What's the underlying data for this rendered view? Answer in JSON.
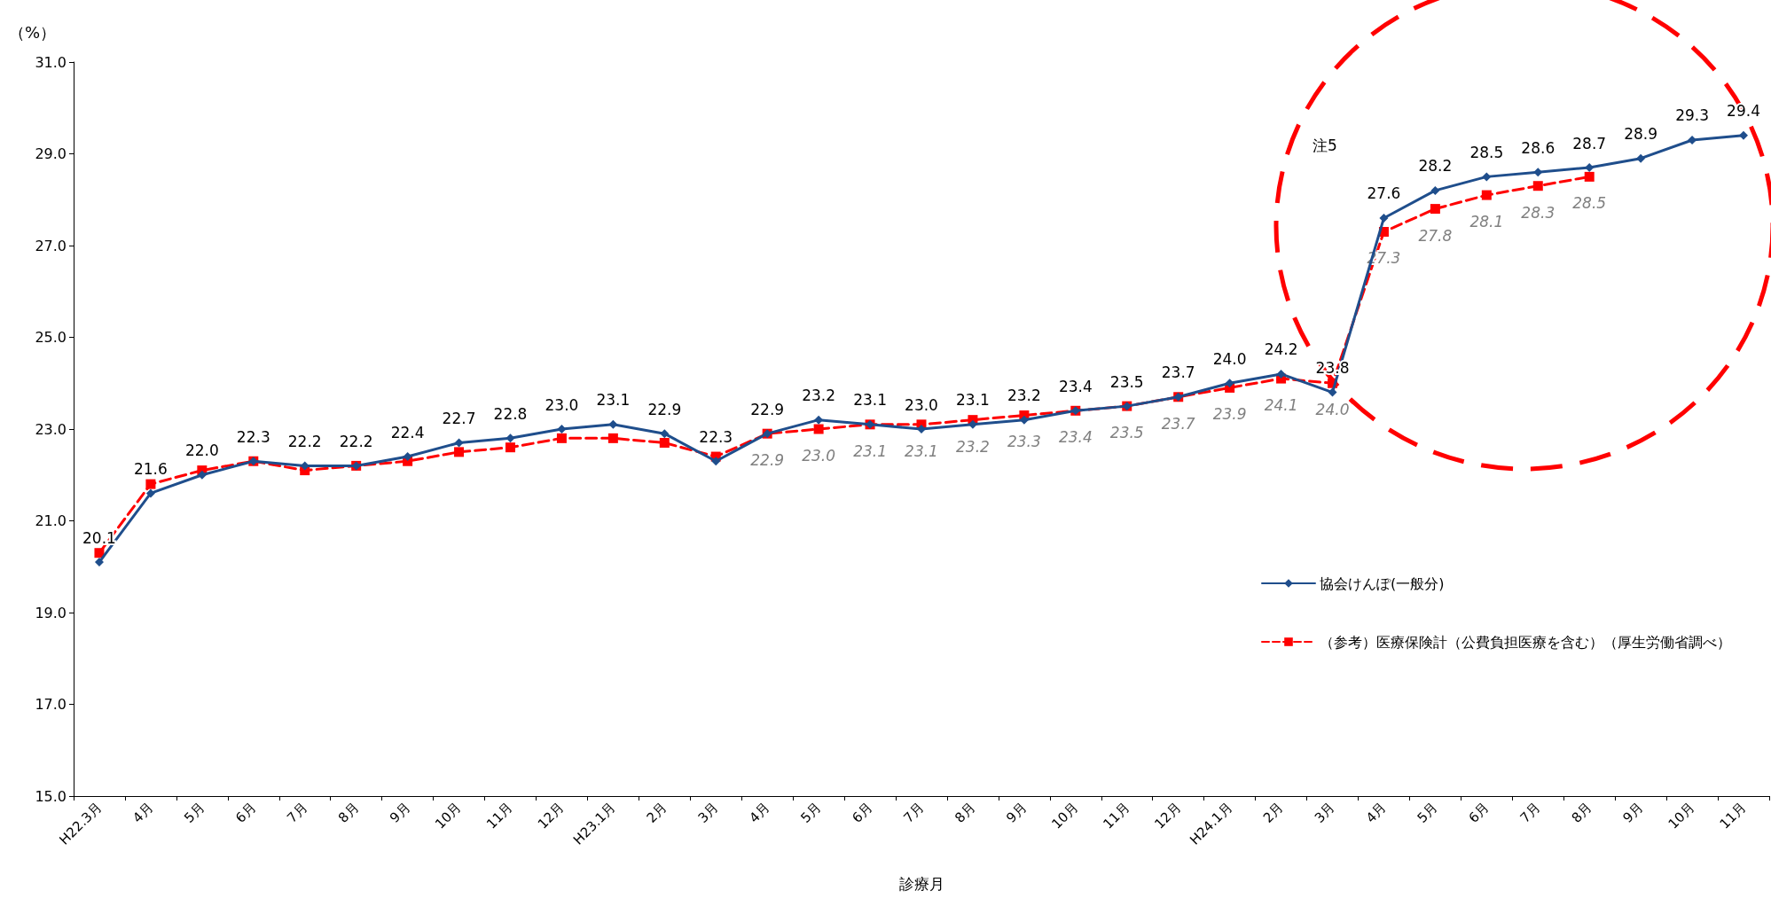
{
  "chart_data": {
    "type": "line",
    "xlabel": "診療月",
    "ylabel": "（%）",
    "categories": [
      "H22.3月",
      "4月",
      "5月",
      "6月",
      "7月",
      "8月",
      "9月",
      "10月",
      "11月",
      "12月",
      "H23.1月",
      "2月",
      "3月",
      "4月",
      "5月",
      "6月",
      "7月",
      "8月",
      "9月",
      "10月",
      "11月",
      "12月",
      "H24.1月",
      "2月",
      "3月",
      "4月",
      "5月",
      "6月",
      "7月",
      "8月",
      "9月",
      "10月",
      "11月"
    ],
    "series": [
      {
        "name": "協会けんぽ(一般分)",
        "color": "#1f4e8c",
        "marker": "diamond",
        "line_style": "solid",
        "values": [
          20.1,
          21.6,
          22.0,
          22.3,
          22.2,
          22.2,
          22.4,
          22.7,
          22.8,
          23.0,
          23.1,
          22.9,
          22.3,
          22.9,
          23.2,
          23.1,
          23.0,
          23.1,
          23.2,
          23.4,
          23.5,
          23.7,
          24.0,
          24.2,
          23.8,
          27.6,
          28.2,
          28.5,
          28.6,
          28.7,
          28.9,
          29.3,
          29.4
        ],
        "value_labels": [
          "20.1",
          "21.6",
          "22.0",
          "22.3",
          "22.2",
          "22.2",
          "22.4",
          "22.7",
          "22.8",
          "23.0",
          "23.1",
          "22.9",
          "22.3",
          "22.9",
          "23.2",
          "23.1",
          "23.0",
          "23.1",
          "23.2",
          "23.4",
          "23.5",
          "23.7",
          "24.0",
          "24.2",
          "23.8",
          "27.6",
          "28.2",
          "28.5",
          "28.6",
          "28.7",
          "28.9",
          "29.3",
          "29.4"
        ]
      },
      {
        "name": "（参考）医療保険計（公費負担医療を含む）（厚生労働省調べ）",
        "color": "#ff0000",
        "marker": "square",
        "line_style": "dashed",
        "values": [
          20.3,
          21.8,
          22.1,
          22.3,
          22.1,
          22.2,
          22.3,
          22.5,
          22.6,
          22.8,
          22.8,
          22.7,
          22.4,
          22.9,
          23.0,
          23.1,
          23.1,
          23.2,
          23.3,
          23.4,
          23.5,
          23.7,
          23.9,
          24.1,
          24.0,
          27.3,
          27.8,
          28.1,
          28.3,
          28.5,
          null,
          null,
          null
        ],
        "value_labels": [
          null,
          null,
          null,
          null,
          null,
          null,
          null,
          null,
          null,
          null,
          null,
          null,
          null,
          "22.9",
          "23.0",
          "23.1",
          "23.1",
          "23.2",
          "23.3",
          "23.4",
          "23.5",
          "23.7",
          "23.9",
          "24.1",
          "24.0",
          "27.3",
          "27.8",
          "28.1",
          "28.3",
          "28.5",
          null,
          null,
          null
        ]
      }
    ],
    "ylim": [
      15,
      31
    ],
    "yticks": [
      {
        "value": 15,
        "label": "15.0"
      },
      {
        "value": 17,
        "label": "17.0"
      },
      {
        "value": 19,
        "label": "19.0"
      },
      {
        "value": 21,
        "label": "21.0"
      },
      {
        "value": 23,
        "label": "23.0"
      },
      {
        "value": 25,
        "label": "25.0"
      },
      {
        "value": 27,
        "label": "27.0"
      },
      {
        "value": 29,
        "label": "29.0"
      },
      {
        "value": 31,
        "label": "31.0"
      }
    ],
    "grid": false,
    "legend": "right",
    "annotations": [
      "注5"
    ]
  }
}
